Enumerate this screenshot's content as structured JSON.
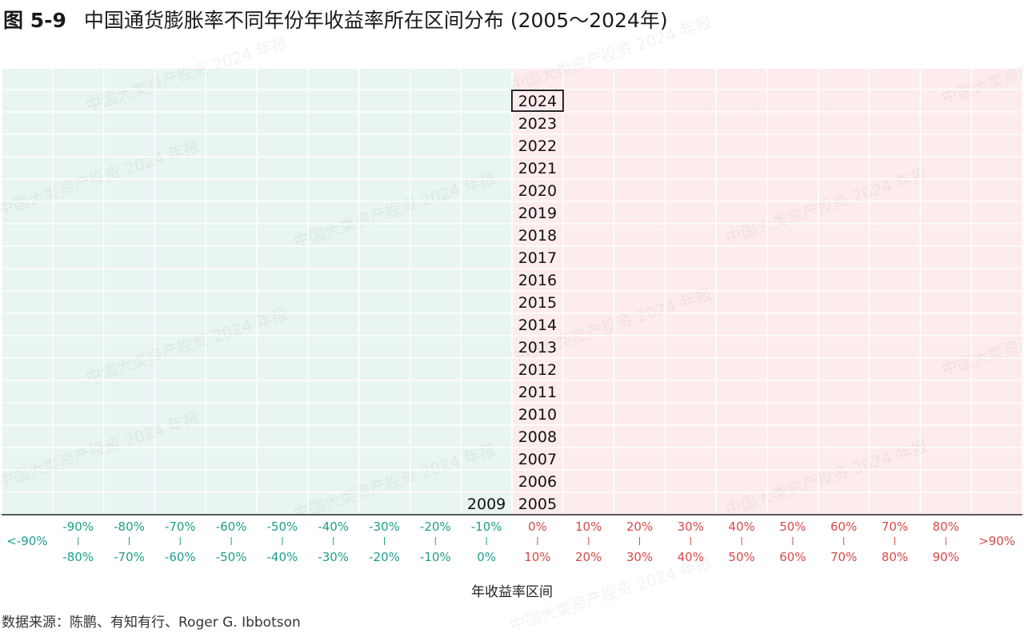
{
  "title": {
    "number": "图 5-9",
    "text": "中国通货膨胀率不同年份年收益率所在区间分布 (2005～2024年)"
  },
  "source": {
    "label": "数据来源：",
    "text": "陈鹏、有知有行、Roger G. Ibbotson"
  },
  "watermark": "中国大类资产投资 2024 年报",
  "colors": {
    "negative_bg": "#e8f5f3",
    "positive_bg": "#fdeced",
    "negative_text": "#1f9e8a",
    "positive_text": "#d84a4a",
    "grid": "#ffffff",
    "axis": "#222222"
  },
  "chart_data": {
    "type": "histogram",
    "xlabel": "年收益率区间",
    "bins": [
      {
        "top": "<-90%",
        "bottom": "",
        "sign": "neg"
      },
      {
        "top": "-90%",
        "bottom": "-80%",
        "sign": "neg"
      },
      {
        "top": "-80%",
        "bottom": "-70%",
        "sign": "neg"
      },
      {
        "top": "-70%",
        "bottom": "-60%",
        "sign": "neg"
      },
      {
        "top": "-60%",
        "bottom": "-50%",
        "sign": "neg"
      },
      {
        "top": "-50%",
        "bottom": "-40%",
        "sign": "neg"
      },
      {
        "top": "-40%",
        "bottom": "-30%",
        "sign": "neg"
      },
      {
        "top": "-30%",
        "bottom": "-20%",
        "sign": "neg"
      },
      {
        "top": "-20%",
        "bottom": "-10%",
        "sign": "neg"
      },
      {
        "top": "-10%",
        "bottom": "0%",
        "sign": "neg"
      },
      {
        "top": "0%",
        "bottom": "10%",
        "sign": "pos"
      },
      {
        "top": "10%",
        "bottom": "20%",
        "sign": "pos"
      },
      {
        "top": "20%",
        "bottom": "30%",
        "sign": "pos"
      },
      {
        "top": "30%",
        "bottom": "40%",
        "sign": "pos"
      },
      {
        "top": "40%",
        "bottom": "50%",
        "sign": "pos"
      },
      {
        "top": "50%",
        "bottom": "60%",
        "sign": "pos"
      },
      {
        "top": "60%",
        "bottom": "70%",
        "sign": "pos"
      },
      {
        "top": "70%",
        "bottom": "80%",
        "sign": "pos"
      },
      {
        "top": "80%",
        "bottom": "90%",
        "sign": "pos"
      },
      {
        "top": ">90%",
        "bottom": "",
        "sign": "pos"
      }
    ],
    "stacks": [
      {
        "bin": "-10%~0%",
        "years": [
          "2009"
        ]
      },
      {
        "bin": "0%~10%",
        "years": [
          "2005",
          "2006",
          "2007",
          "2008",
          "2010",
          "2011",
          "2012",
          "2013",
          "2014",
          "2015",
          "2016",
          "2017",
          "2018",
          "2019",
          "2020",
          "2021",
          "2022",
          "2023",
          "2024"
        ]
      }
    ],
    "highlight_year": "2024",
    "rows": 19
  }
}
